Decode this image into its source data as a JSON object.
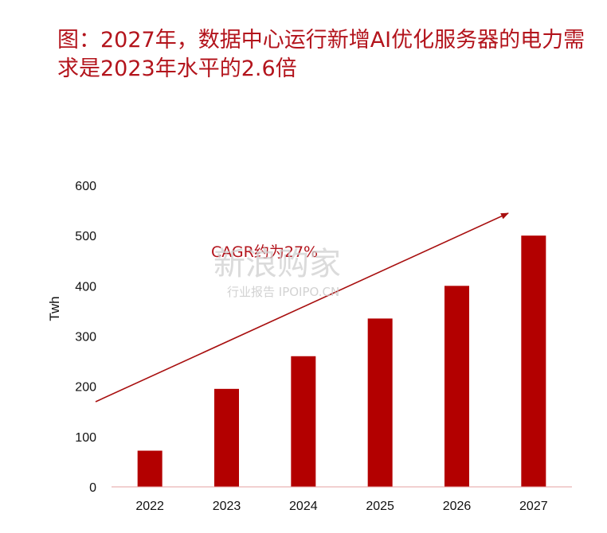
{
  "title": "图：2027年，数据中心运行新增AI优化服务器的电力需求是2023年水平的2.6倍",
  "watermark": {
    "main": "新浪购家",
    "sub": "行业报告 IPOIPO.CN"
  },
  "colors": {
    "bar": "#b30000",
    "title": "#b3141c",
    "axis": "#e6a0a0",
    "arrow": "#a80f0f"
  },
  "chart_data": {
    "type": "bar",
    "categories": [
      "2022",
      "2023",
      "2024",
      "2025",
      "2026",
      "2027"
    ],
    "values": [
      72,
      195,
      260,
      335,
      400,
      500
    ],
    "xlabel": "",
    "ylabel": "Twh",
    "ylim": [
      0,
      600
    ],
    "yticks": [
      0,
      100,
      200,
      300,
      400,
      500,
      600
    ],
    "grid": false,
    "annotation": "CAGR约为27%"
  }
}
